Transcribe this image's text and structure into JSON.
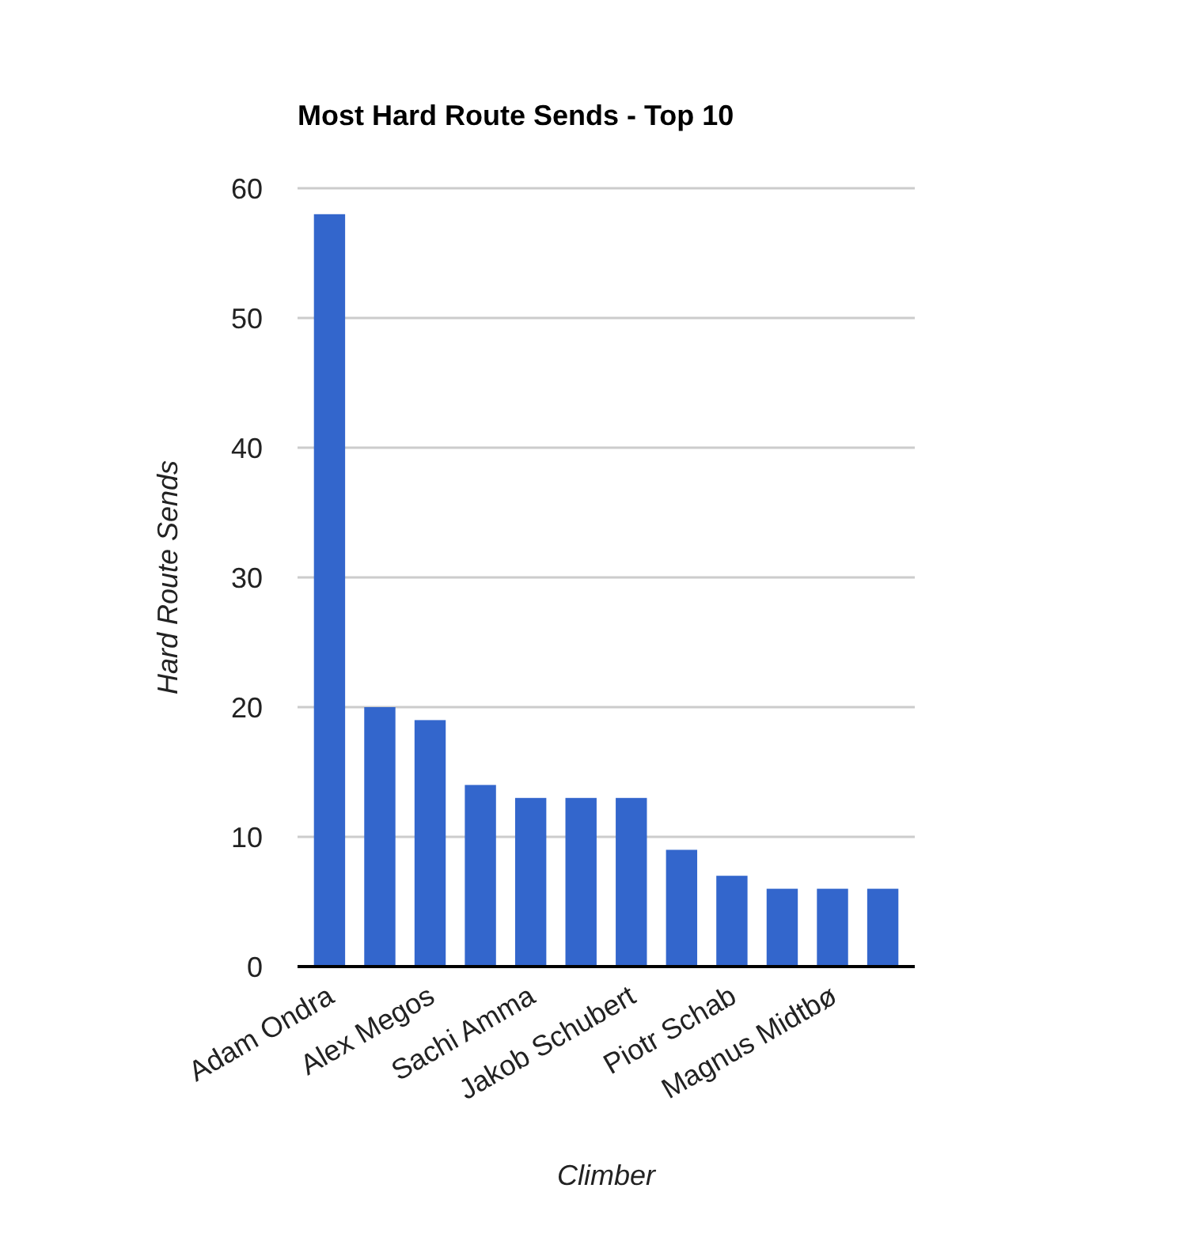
{
  "chart_data": {
    "type": "bar",
    "title": "Most Hard Route Sends - Top 10",
    "xlabel": "Climber",
    "ylabel": "Hard Route Sends",
    "categories": [
      "Adam Ondra",
      null,
      "Alex Megos",
      null,
      "Sachi Amma",
      null,
      "Jakob Schubert",
      null,
      "Piotr Schab",
      null,
      "Magnus Midtbø",
      null
    ],
    "values": [
      58,
      20,
      19,
      14,
      13,
      13,
      13,
      9,
      7,
      6,
      6,
      6
    ],
    "color": "#3366cc",
    "ylim": [
      0,
      60
    ],
    "yticks": [
      0,
      10,
      20,
      30,
      40,
      50,
      60
    ],
    "grid": "y"
  }
}
